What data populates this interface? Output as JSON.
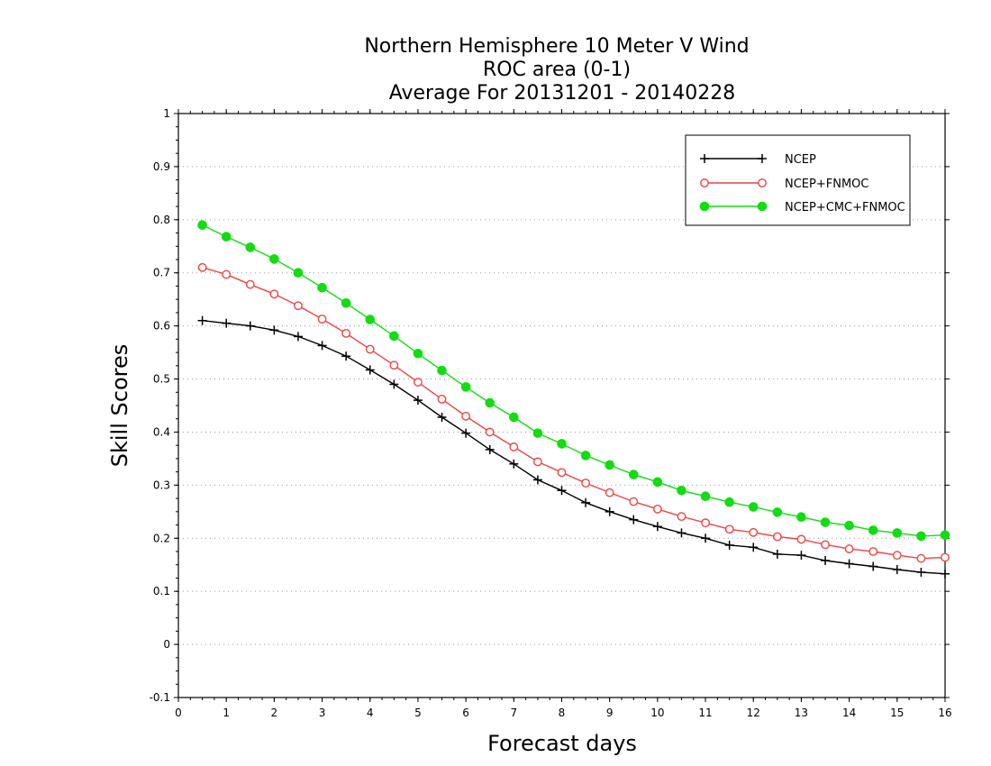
{
  "chart_data": {
    "type": "line",
    "title": [
      "Northern Hemisphere 10 Meter V Wind",
      "ROC area (0-1)",
      "Average For 20131201 - 20140228"
    ],
    "xlabel": "Forecast days",
    "ylabel": "Skill Scores",
    "xlim": [
      0,
      16
    ],
    "ylim": [
      -0.1,
      1
    ],
    "xticks": [
      "0",
      "1",
      "2",
      "3",
      "4",
      "5",
      "6",
      "7",
      "8",
      "9",
      "10",
      "11",
      "12",
      "13",
      "14",
      "15",
      "16"
    ],
    "yticks": [
      "-0.1",
      "0",
      "0.1",
      "0.2",
      "0.3",
      "0.4",
      "0.5",
      "0.6",
      "0.7",
      "0.8",
      "0.9",
      "1"
    ],
    "grid": "dotted horizontal",
    "legend_position": "top-right",
    "x": [
      0.5,
      1,
      1.5,
      2,
      2.5,
      3,
      3.5,
      4,
      4.5,
      5,
      5.5,
      6,
      6.5,
      7,
      7.5,
      8,
      8.5,
      9,
      9.5,
      10,
      10.5,
      11,
      11.5,
      12,
      12.5,
      13,
      13.5,
      14,
      14.5,
      15,
      15.5,
      16
    ],
    "series": [
      {
        "name": "NCEP",
        "color": "#000000",
        "marker": "plus",
        "values": [
          0.61,
          0.605,
          0.6,
          0.592,
          0.58,
          0.563,
          0.543,
          0.517,
          0.49,
          0.46,
          0.428,
          0.398,
          0.367,
          0.34,
          0.31,
          0.29,
          0.267,
          0.25,
          0.235,
          0.222,
          0.21,
          0.2,
          0.187,
          0.183,
          0.17,
          0.168,
          0.158,
          0.152,
          0.147,
          0.141,
          0.136,
          0.133
        ]
      },
      {
        "name": "NCEP+FNMOC",
        "color": "#ee4444",
        "marker": "open-circle",
        "values": [
          0.71,
          0.697,
          0.678,
          0.66,
          0.638,
          0.613,
          0.586,
          0.556,
          0.526,
          0.494,
          0.462,
          0.43,
          0.4,
          0.372,
          0.344,
          0.324,
          0.304,
          0.286,
          0.269,
          0.255,
          0.241,
          0.229,
          0.217,
          0.211,
          0.203,
          0.198,
          0.188,
          0.18,
          0.175,
          0.168,
          0.162,
          0.164
        ]
      },
      {
        "name": "NCEP+CMC+FNMOC",
        "color": "#11dd11",
        "marker": "filled-circle",
        "values": [
          0.79,
          0.768,
          0.748,
          0.726,
          0.7,
          0.672,
          0.643,
          0.612,
          0.581,
          0.548,
          0.516,
          0.485,
          0.455,
          0.428,
          0.398,
          0.378,
          0.356,
          0.338,
          0.32,
          0.306,
          0.29,
          0.279,
          0.268,
          0.259,
          0.249,
          0.24,
          0.23,
          0.224,
          0.215,
          0.21,
          0.204,
          0.206
        ]
      }
    ]
  }
}
